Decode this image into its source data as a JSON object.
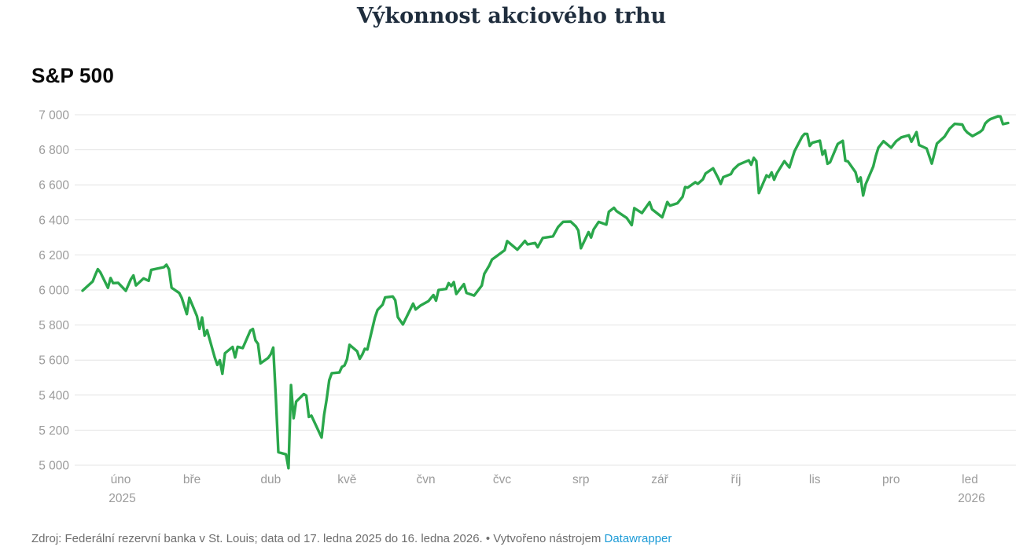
{
  "header": {
    "title": "Výkonnost akciového trhu",
    "series_label": "S&P 500"
  },
  "footer": {
    "source_text": "Zdroj: Federální rezervní banka v St. Louis; data od 17. ledna 2025 do 16. ledna 2026. • Vytvořeno nástrojem ",
    "link_label": "Datawrapper"
  },
  "colors": {
    "line": "#2AA74B",
    "grid": "#e4e4e4",
    "axis_text": "#9b9b9b",
    "title_text": "#1f2d3d",
    "series_label_text": "#0a0a0a",
    "footer_text": "#6e6e6e",
    "link": "#1d9bd7"
  },
  "chart_data": {
    "type": "line",
    "title": "Výkonnost akciového trhu",
    "series_name": "S&P 500",
    "xlabel": "",
    "ylabel": "",
    "grid": true,
    "legend_position": "none",
    "ylim": [
      5000,
      7000
    ],
    "x_range": [
      "2025-01-17",
      "2026-01-16"
    ],
    "y_ticks": [
      {
        "value": 5000,
        "label": "5 000"
      },
      {
        "value": 5200,
        "label": "5 200"
      },
      {
        "value": 5400,
        "label": "5 400"
      },
      {
        "value": 5600,
        "label": "5 600"
      },
      {
        "value": 5800,
        "label": "5 800"
      },
      {
        "value": 6000,
        "label": "6 000"
      },
      {
        "value": 6200,
        "label": "6 200"
      },
      {
        "value": 6400,
        "label": "6 400"
      },
      {
        "value": 6600,
        "label": "6 600"
      },
      {
        "value": 6800,
        "label": "6 800"
      },
      {
        "value": 7000,
        "label": "7 000"
      }
    ],
    "x_ticks": [
      {
        "date": "2025-02-01",
        "label": "úno",
        "sublabel": "2025"
      },
      {
        "date": "2025-03-01",
        "label": "bře",
        "sublabel": ""
      },
      {
        "date": "2025-04-01",
        "label": "dub",
        "sublabel": ""
      },
      {
        "date": "2025-05-01",
        "label": "kvě",
        "sublabel": ""
      },
      {
        "date": "2025-06-01",
        "label": "čvn",
        "sublabel": ""
      },
      {
        "date": "2025-07-01",
        "label": "čvc",
        "sublabel": ""
      },
      {
        "date": "2025-08-01",
        "label": "srp",
        "sublabel": ""
      },
      {
        "date": "2025-09-01",
        "label": "zář",
        "sublabel": ""
      },
      {
        "date": "2025-10-01",
        "label": "říj",
        "sublabel": ""
      },
      {
        "date": "2025-11-01",
        "label": "lis",
        "sublabel": ""
      },
      {
        "date": "2025-12-01",
        "label": "pro",
        "sublabel": ""
      },
      {
        "date": "2026-01-01",
        "label": "led",
        "sublabel": "2026"
      }
    ],
    "points": [
      [
        "2025-01-17",
        5996
      ],
      [
        "2025-01-21",
        6049
      ],
      [
        "2025-01-22",
        6086
      ],
      [
        "2025-01-23",
        6119
      ],
      [
        "2025-01-24",
        6101
      ],
      [
        "2025-01-27",
        6012
      ],
      [
        "2025-01-28",
        6068
      ],
      [
        "2025-01-29",
        6039
      ],
      [
        "2025-01-31",
        6041
      ],
      [
        "2025-02-03",
        5995
      ],
      [
        "2025-02-05",
        6061
      ],
      [
        "2025-02-06",
        6083
      ],
      [
        "2025-02-07",
        6026
      ],
      [
        "2025-02-10",
        6066
      ],
      [
        "2025-02-12",
        6052
      ],
      [
        "2025-02-13",
        6115
      ],
      [
        "2025-02-18",
        6130
      ],
      [
        "2025-02-19",
        6144
      ],
      [
        "2025-02-20",
        6118
      ],
      [
        "2025-02-21",
        6013
      ],
      [
        "2025-02-24",
        5983
      ],
      [
        "2025-02-25",
        5955
      ],
      [
        "2025-02-27",
        5862
      ],
      [
        "2025-02-28",
        5955
      ],
      [
        "2025-03-03",
        5850
      ],
      [
        "2025-03-04",
        5778
      ],
      [
        "2025-03-05",
        5843
      ],
      [
        "2025-03-06",
        5739
      ],
      [
        "2025-03-07",
        5770
      ],
      [
        "2025-03-10",
        5615
      ],
      [
        "2025-03-11",
        5572
      ],
      [
        "2025-03-12",
        5599
      ],
      [
        "2025-03-13",
        5522
      ],
      [
        "2025-03-14",
        5639
      ],
      [
        "2025-03-17",
        5675
      ],
      [
        "2025-03-18",
        5615
      ],
      [
        "2025-03-19",
        5676
      ],
      [
        "2025-03-21",
        5668
      ],
      [
        "2025-03-24",
        5768
      ],
      [
        "2025-03-25",
        5777
      ],
      [
        "2025-03-26",
        5712
      ],
      [
        "2025-03-27",
        5693
      ],
      [
        "2025-03-28",
        5581
      ],
      [
        "2025-03-31",
        5612
      ],
      [
        "2025-04-01",
        5633
      ],
      [
        "2025-04-02",
        5671
      ],
      [
        "2025-04-03",
        5396
      ],
      [
        "2025-04-04",
        5074
      ],
      [
        "2025-04-07",
        5062
      ],
      [
        "2025-04-08",
        4983
      ],
      [
        "2025-04-09",
        5457
      ],
      [
        "2025-04-10",
        5268
      ],
      [
        "2025-04-11",
        5363
      ],
      [
        "2025-04-14",
        5406
      ],
      [
        "2025-04-15",
        5397
      ],
      [
        "2025-04-16",
        5276
      ],
      [
        "2025-04-17",
        5283
      ],
      [
        "2025-04-21",
        5158
      ],
      [
        "2025-04-22",
        5288
      ],
      [
        "2025-04-23",
        5376
      ],
      [
        "2025-04-24",
        5485
      ],
      [
        "2025-04-25",
        5525
      ],
      [
        "2025-04-28",
        5529
      ],
      [
        "2025-04-29",
        5561
      ],
      [
        "2025-04-30",
        5569
      ],
      [
        "2025-05-01",
        5604
      ],
      [
        "2025-05-02",
        5687
      ],
      [
        "2025-05-05",
        5650
      ],
      [
        "2025-05-06",
        5607
      ],
      [
        "2025-05-07",
        5631
      ],
      [
        "2025-05-08",
        5664
      ],
      [
        "2025-05-09",
        5660
      ],
      [
        "2025-05-12",
        5844
      ],
      [
        "2025-05-13",
        5886
      ],
      [
        "2025-05-15",
        5916
      ],
      [
        "2025-05-16",
        5958
      ],
      [
        "2025-05-19",
        5963
      ],
      [
        "2025-05-20",
        5941
      ],
      [
        "2025-05-21",
        5845
      ],
      [
        "2025-05-23",
        5803
      ],
      [
        "2025-05-27",
        5922
      ],
      [
        "2025-05-28",
        5889
      ],
      [
        "2025-05-30",
        5912
      ],
      [
        "2025-06-02",
        5936
      ],
      [
        "2025-06-04",
        5971
      ],
      [
        "2025-06-05",
        5939
      ],
      [
        "2025-06-06",
        6000
      ],
      [
        "2025-06-09",
        6006
      ],
      [
        "2025-06-10",
        6039
      ],
      [
        "2025-06-11",
        6022
      ],
      [
        "2025-06-12",
        6045
      ],
      [
        "2025-06-13",
        5977
      ],
      [
        "2025-06-16",
        6033
      ],
      [
        "2025-06-17",
        5983
      ],
      [
        "2025-06-20",
        5968
      ],
      [
        "2025-06-23",
        6025
      ],
      [
        "2025-06-24",
        6092
      ],
      [
        "2025-06-26",
        6141
      ],
      [
        "2025-06-27",
        6173
      ],
      [
        "2025-06-30",
        6205
      ],
      [
        "2025-07-02",
        6227
      ],
      [
        "2025-07-03",
        6279
      ],
      [
        "2025-07-07",
        6230
      ],
      [
        "2025-07-09",
        6263
      ],
      [
        "2025-07-10",
        6280
      ],
      [
        "2025-07-11",
        6260
      ],
      [
        "2025-07-14",
        6268
      ],
      [
        "2025-07-15",
        6244
      ],
      [
        "2025-07-17",
        6297
      ],
      [
        "2025-07-21",
        6306
      ],
      [
        "2025-07-23",
        6359
      ],
      [
        "2025-07-25",
        6389
      ],
      [
        "2025-07-28",
        6390
      ],
      [
        "2025-07-30",
        6363
      ],
      [
        "2025-07-31",
        6339
      ],
      [
        "2025-08-01",
        6238
      ],
      [
        "2025-08-04",
        6330
      ],
      [
        "2025-08-05",
        6299
      ],
      [
        "2025-08-06",
        6345
      ],
      [
        "2025-08-08",
        6389
      ],
      [
        "2025-08-11",
        6373
      ],
      [
        "2025-08-12",
        6446
      ],
      [
        "2025-08-14",
        6469
      ],
      [
        "2025-08-15",
        6450
      ],
      [
        "2025-08-19",
        6411
      ],
      [
        "2025-08-21",
        6370
      ],
      [
        "2025-08-22",
        6467
      ],
      [
        "2025-08-25",
        6439
      ],
      [
        "2025-08-28",
        6501
      ],
      [
        "2025-08-29",
        6460
      ],
      [
        "2025-09-02",
        6415
      ],
      [
        "2025-09-04",
        6502
      ],
      [
        "2025-09-05",
        6481
      ],
      [
        "2025-09-08",
        6495
      ],
      [
        "2025-09-10",
        6532
      ],
      [
        "2025-09-11",
        6587
      ],
      [
        "2025-09-12",
        6584
      ],
      [
        "2025-09-15",
        6615
      ],
      [
        "2025-09-16",
        6606
      ],
      [
        "2025-09-18",
        6632
      ],
      [
        "2025-09-19",
        6664
      ],
      [
        "2025-09-22",
        6694
      ],
      [
        "2025-09-24",
        6638
      ],
      [
        "2025-09-25",
        6605
      ],
      [
        "2025-09-26",
        6644
      ],
      [
        "2025-09-29",
        6661
      ],
      [
        "2025-09-30",
        6688
      ],
      [
        "2025-10-02",
        6715
      ],
      [
        "2025-10-06",
        6740
      ],
      [
        "2025-10-07",
        6715
      ],
      [
        "2025-10-08",
        6754
      ],
      [
        "2025-10-09",
        6735
      ],
      [
        "2025-10-10",
        6553
      ],
      [
        "2025-10-13",
        6654
      ],
      [
        "2025-10-14",
        6644
      ],
      [
        "2025-10-15",
        6671
      ],
      [
        "2025-10-16",
        6629
      ],
      [
        "2025-10-17",
        6664
      ],
      [
        "2025-10-20",
        6735
      ],
      [
        "2025-10-22",
        6699
      ],
      [
        "2025-10-24",
        6792
      ],
      [
        "2025-10-27",
        6875
      ],
      [
        "2025-10-28",
        6891
      ],
      [
        "2025-10-29",
        6890
      ],
      [
        "2025-10-30",
        6822
      ],
      [
        "2025-10-31",
        6840
      ],
      [
        "2025-11-03",
        6852
      ],
      [
        "2025-11-04",
        6772
      ],
      [
        "2025-11-05",
        6796
      ],
      [
        "2025-11-06",
        6720
      ],
      [
        "2025-11-07",
        6729
      ],
      [
        "2025-11-10",
        6833
      ],
      [
        "2025-11-12",
        6851
      ],
      [
        "2025-11-13",
        6737
      ],
      [
        "2025-11-14",
        6734
      ],
      [
        "2025-11-17",
        6672
      ],
      [
        "2025-11-18",
        6617
      ],
      [
        "2025-11-19",
        6642
      ],
      [
        "2025-11-20",
        6539
      ],
      [
        "2025-11-21",
        6603
      ],
      [
        "2025-11-24",
        6705
      ],
      [
        "2025-11-25",
        6766
      ],
      [
        "2025-11-26",
        6812
      ],
      [
        "2025-11-28",
        6849
      ],
      [
        "2025-12-01",
        6812
      ],
      [
        "2025-12-03",
        6849
      ],
      [
        "2025-12-05",
        6871
      ],
      [
        "2025-12-08",
        6883
      ],
      [
        "2025-12-09",
        6846
      ],
      [
        "2025-12-11",
        6901
      ],
      [
        "2025-12-12",
        6827
      ],
      [
        "2025-12-15",
        6807
      ],
      [
        "2025-12-17",
        6721
      ],
      [
        "2025-12-19",
        6835
      ],
      [
        "2025-12-22",
        6875
      ],
      [
        "2025-12-24",
        6920
      ],
      [
        "2025-12-26",
        6948
      ],
      [
        "2025-12-29",
        6944
      ],
      [
        "2025-12-30",
        6915
      ],
      [
        "2025-12-31",
        6898
      ],
      [
        "2026-01-02",
        6878
      ],
      [
        "2026-01-05",
        6902
      ],
      [
        "2026-01-06",
        6915
      ],
      [
        "2026-01-07",
        6950
      ],
      [
        "2026-01-08",
        6964
      ],
      [
        "2026-01-09",
        6975
      ],
      [
        "2026-01-12",
        6991
      ],
      [
        "2026-01-13",
        6990
      ],
      [
        "2026-01-14",
        6946
      ],
      [
        "2026-01-15",
        6950
      ],
      [
        "2026-01-16",
        6953
      ]
    ]
  }
}
